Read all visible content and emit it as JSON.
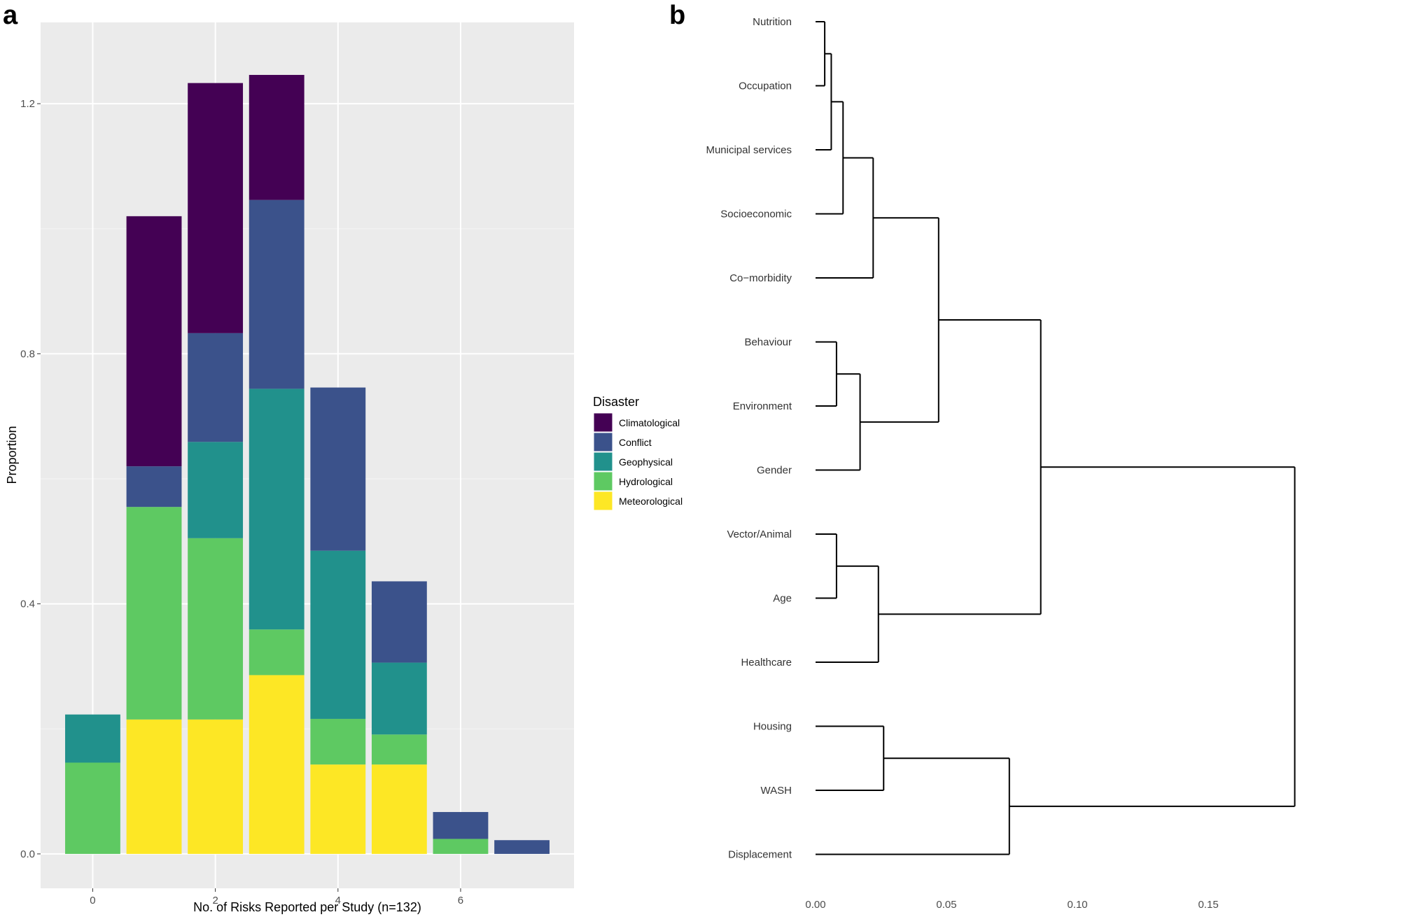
{
  "panel_a_label": "a",
  "panel_b_label": "b",
  "chart_data": [
    {
      "type": "bar",
      "stacked": true,
      "xlabel": "No. of Risks Reported per Study (n=132)",
      "ylabel": "Proportion",
      "x": [
        0,
        1,
        2,
        3,
        4,
        5,
        6,
        7
      ],
      "xticks": [
        "0",
        "2",
        "4",
        "6"
      ],
      "xtick_values": [
        0,
        2,
        4,
        6
      ],
      "yticks": [
        "0.0",
        "0.4",
        "0.8",
        "1.2"
      ],
      "ytick_values": [
        0.0,
        0.4,
        0.8,
        1.2
      ],
      "xlim": [
        -0.85,
        7.85
      ],
      "ylim": [
        -0.055,
        1.33
      ],
      "grid": true,
      "legend_title": "Disaster",
      "legend_position": "right",
      "series": [
        {
          "name": "Meteorological",
          "color": "#fde725",
          "values": [
            0,
            0.215,
            0.215,
            0.286,
            0.143,
            0.143,
            0,
            0
          ]
        },
        {
          "name": "Hydrological",
          "color": "#5ec962",
          "values": [
            0.146,
            0.34,
            0.29,
            0.073,
            0.073,
            0.048,
            0.024,
            0
          ]
        },
        {
          "name": "Geophysical",
          "color": "#21918c",
          "values": [
            0.077,
            0,
            0.154,
            0.385,
            0.269,
            0.115,
            0,
            0
          ]
        },
        {
          "name": "Conflict",
          "color": "#3b528b",
          "values": [
            0,
            0.065,
            0.174,
            0.302,
            0.261,
            0.13,
            0.043,
            0.022
          ]
        },
        {
          "name": "Climatological",
          "color": "#440154",
          "values": [
            0,
            0.4,
            0.4,
            0.2,
            0,
            0,
            0,
            0
          ]
        }
      ],
      "legend_order": [
        "Climatological",
        "Conflict",
        "Geophysical",
        "Hydrological",
        "Meteorological"
      ]
    },
    {
      "type": "dendrogram",
      "orientation": "horizontal",
      "xticks": [
        "0.00",
        "0.05",
        "0.10",
        "0.15"
      ],
      "xtick_values": [
        0,
        0.05,
        0.1,
        0.15
      ],
      "xlim": [
        0,
        0.185
      ],
      "leaves": [
        "Nutrition",
        "Occupation",
        "Municipal services",
        "Socioeconomic",
        "Co−morbidity",
        "Behaviour",
        "Environment",
        "Gender",
        "Vector/Animal",
        "Age",
        "Healthcare",
        "Housing",
        "WASH",
        "Displacement"
      ],
      "merges": [
        {
          "left": "L0",
          "right": "L1",
          "height": 0.0035
        },
        {
          "left": "M0",
          "right": "L2",
          "height": 0.006
        },
        {
          "left": "M1",
          "right": "L3",
          "height": 0.0105
        },
        {
          "left": "M2",
          "right": "L4",
          "height": 0.022
        },
        {
          "left": "L5",
          "right": "L6",
          "height": 0.008
        },
        {
          "left": "M4",
          "right": "L7",
          "height": 0.017
        },
        {
          "left": "M3",
          "right": "M5",
          "height": 0.047
        },
        {
          "left": "L8",
          "right": "L9",
          "height": 0.008
        },
        {
          "left": "M7",
          "right": "L10",
          "height": 0.024
        },
        {
          "left": "M6",
          "right": "M8",
          "height": 0.086
        },
        {
          "left": "L11",
          "right": "L12",
          "height": 0.026
        },
        {
          "left": "M10",
          "right": "L13",
          "height": 0.074
        },
        {
          "left": "M9",
          "right": "M11",
          "height": 0.183
        }
      ]
    }
  ]
}
